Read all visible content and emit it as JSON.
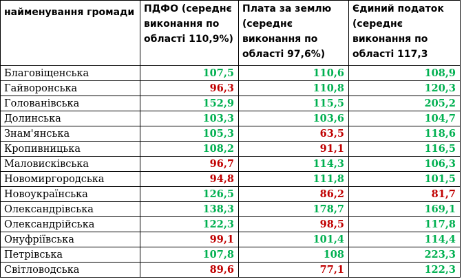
{
  "headers": [
    "найменування громади",
    "ПДФО (середнє виконання по області 110,9%)",
    "Плата за землю (середнє виконання по області 97,6%)",
    "Єдиний податок (середнє виконання по області 117,3"
  ],
  "colors": {
    "above_average": "#00b050",
    "below_average": "#c00000"
  },
  "rows": [
    {
      "name": "Благовіщенська",
      "pdfo": "107,5",
      "pdfo_status": "above",
      "land": "110,6",
      "land_status": "above",
      "single": "108,9",
      "single_status": "above"
    },
    {
      "name": "Гайворонська",
      "pdfo": "96,3",
      "pdfo_status": "below",
      "land": "110,8",
      "land_status": "above",
      "single": "120,3",
      "single_status": "above"
    },
    {
      "name": "Голованівська",
      "pdfo": "152,9",
      "pdfo_status": "above",
      "land": "115,5",
      "land_status": "above",
      "single": "205,2",
      "single_status": "above"
    },
    {
      "name": "Долинська",
      "pdfo": "103,3",
      "pdfo_status": "above",
      "land": "103,6",
      "land_status": "above",
      "single": "104,7",
      "single_status": "above"
    },
    {
      "name": "Знам'янська",
      "pdfo": "105,3",
      "pdfo_status": "above",
      "land": "63,5",
      "land_status": "below",
      "single": "118,6",
      "single_status": "above"
    },
    {
      "name": "Кропивницька",
      "pdfo": "108,2",
      "pdfo_status": "above",
      "land": "91,1",
      "land_status": "below",
      "single": "116,5",
      "single_status": "above"
    },
    {
      "name": "Маловисківська",
      "pdfo": "96,7",
      "pdfo_status": "below",
      "land": "114,3",
      "land_status": "above",
      "single": "106,3",
      "single_status": "above"
    },
    {
      "name": "Новомиргородська",
      "pdfo": "94,8",
      "pdfo_status": "below",
      "land": "111,8",
      "land_status": "above",
      "single": "101,5",
      "single_status": "above"
    },
    {
      "name": "Новоукраїнська",
      "pdfo": "126,5",
      "pdfo_status": "above",
      "land": "86,2",
      "land_status": "below",
      "single": "81,7",
      "single_status": "below"
    },
    {
      "name": "Олександрівська",
      "pdfo": "138,3",
      "pdfo_status": "above",
      "land": "178,7",
      "land_status": "above",
      "single": "169,1",
      "single_status": "above"
    },
    {
      "name": "Олександрійська",
      "pdfo": "122,3",
      "pdfo_status": "above",
      "land": "98,5",
      "land_status": "below",
      "single": "117,8",
      "single_status": "above"
    },
    {
      "name": "Онуфріївська",
      "pdfo": "99,1",
      "pdfo_status": "below",
      "land": "101,4",
      "land_status": "above",
      "single": "114,4",
      "single_status": "above"
    },
    {
      "name": "Петрівська",
      "pdfo": "107,8",
      "pdfo_status": "above",
      "land": "108",
      "land_status": "above",
      "single": "223,3",
      "single_status": "above"
    },
    {
      "name": "Світловодська",
      "pdfo": "89,6",
      "pdfo_status": "below",
      "land": "77,1",
      "land_status": "below",
      "single": "122,3",
      "single_status": "above"
    }
  ]
}
